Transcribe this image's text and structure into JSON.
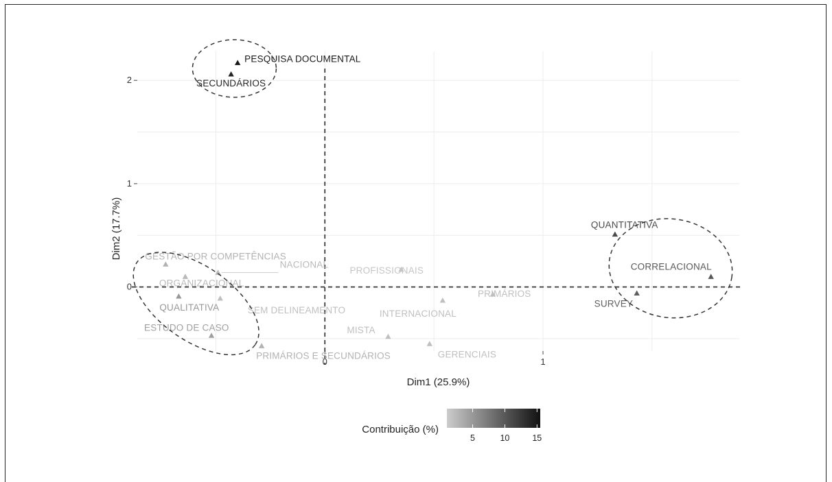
{
  "chart_data": {
    "type": "scatter",
    "xlabel": "Dim1 (25.9%)",
    "ylabel": "Dim2 (17.7%)",
    "xlim": [
      -0.86,
      1.9
    ],
    "ylim": [
      -0.62,
      2.28
    ],
    "x_ticks": [
      0,
      1
    ],
    "y_ticks": [
      0,
      1,
      2
    ],
    "x_tick_labels": [
      "0",
      "1"
    ],
    "y_tick_labels": [
      "0",
      "1",
      "2"
    ],
    "grid": true,
    "reference_lines": {
      "x": 0,
      "y": 0,
      "style": "dashed"
    },
    "legend": {
      "title": "Contribuição (%)",
      "position": "bottom",
      "range": [
        1,
        15.5
      ],
      "ticks": [
        5,
        10,
        15
      ],
      "tick_labels": [
        "5",
        "10",
        "15"
      ],
      "color_low": "#cccccc",
      "color_high": "#111111"
    },
    "points": [
      {
        "label": "PESQUISA DOCUMENTAL",
        "x": -0.4,
        "y": 2.17,
        "contrib": 15.0
      },
      {
        "label": "SECUNDÁRIOS",
        "x": -0.43,
        "y": 2.06,
        "contrib": 14.0
      },
      {
        "label": "QUANTITATIVA",
        "x": 1.33,
        "y": 0.51,
        "contrib": 11.0
      },
      {
        "label": "CORRELACIONAL",
        "x": 1.77,
        "y": 0.1,
        "contrib": 10.0
      },
      {
        "label": "SURVEY",
        "x": 1.43,
        "y": -0.06,
        "contrib": 9.5
      },
      {
        "label": "GESTÃO POR COMPETÊNCIAS",
        "x": -0.73,
        "y": 0.22,
        "contrib": 3.0
      },
      {
        "label": "NACIONAL",
        "x": -0.49,
        "y": 0.14,
        "contrib": 2.5
      },
      {
        "label": "ORGANIZACIONAL",
        "x": -0.64,
        "y": 0.1,
        "contrib": 2.5
      },
      {
        "label": "QUALITATIVA",
        "x": -0.67,
        "y": -0.09,
        "contrib": 5.0
      },
      {
        "label": "SEM DELINEAMENTO",
        "x": -0.48,
        "y": -0.11,
        "contrib": 2.0
      },
      {
        "label": "ESTUDO DE CASO",
        "x": -0.52,
        "y": -0.47,
        "contrib": 4.5
      },
      {
        "label": "PRIMÁRIOS E SECUNDÁRIOS",
        "x": -0.29,
        "y": -0.57,
        "contrib": 3.0
      },
      {
        "label": "PROFISSIONAIS",
        "x": 0.35,
        "y": 0.17,
        "contrib": 1.5
      },
      {
        "label": "INTERNACIONAL",
        "x": 0.54,
        "y": -0.13,
        "contrib": 2.0
      },
      {
        "label": "MISTA",
        "x": 0.29,
        "y": -0.48,
        "contrib": 2.0
      },
      {
        "label": "GERENCIAIS",
        "x": 0.48,
        "y": -0.55,
        "contrib": 2.0
      },
      {
        "label": "PRIMÁRIOS",
        "x": 0.77,
        "y": -0.07,
        "contrib": 2.0
      }
    ],
    "clusters": [
      {
        "name": "documental",
        "members": [
          "PESQUISA DOCUMENTAL",
          "SECUNDÁRIOS"
        ]
      },
      {
        "name": "qualitativa",
        "members": [
          "GESTÃO POR COMPETÊNCIAS",
          "ORGANIZACIONAL",
          "QUALITATIVA",
          "ESTUDO DE CASO"
        ]
      },
      {
        "name": "quantitativa",
        "members": [
          "QUANTITATIVA",
          "CORRELACIONAL",
          "SURVEY"
        ]
      }
    ]
  }
}
